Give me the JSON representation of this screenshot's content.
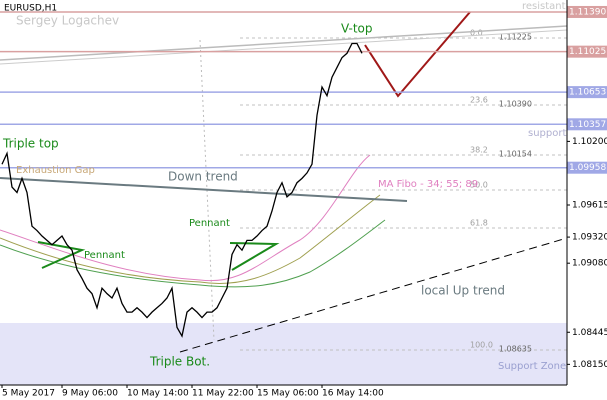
{
  "chart_data": {
    "type": "line",
    "title": "EURUSD,H1",
    "categories": [
      "5 May 2017",
      null,
      null,
      null,
      null,
      null,
      null,
      null,
      null,
      null,
      null,
      null,
      "9 May 06:00",
      null,
      null,
      null,
      null,
      null,
      null,
      null,
      null,
      null,
      null,
      null,
      null,
      "10 May 14:00",
      null,
      null,
      null,
      null,
      null,
      null,
      null,
      null,
      null,
      null,
      null,
      null,
      "11 May 22:00",
      null,
      null,
      null,
      null,
      null,
      null,
      null,
      null,
      null,
      null,
      null,
      null,
      "15 May 06:00",
      null,
      null,
      null,
      null,
      null,
      null,
      null,
      null,
      null,
      null,
      null,
      null,
      "16 May 14:00",
      null,
      null,
      null,
      null,
      null,
      null,
      null,
      null
    ],
    "series": [
      {
        "name": "EURUSD",
        "color": "#000000",
        "values": [
          1.0999,
          1.1009,
          1.0978,
          1.0973,
          1.0986,
          1.0973,
          1.0942,
          1.0938,
          1.0933,
          1.0929,
          1.0925,
          1.0929,
          1.0933,
          1.0925,
          1.092,
          1.0902,
          1.0894,
          1.0885,
          1.088,
          1.0867,
          1.0885,
          1.088,
          1.0876,
          1.0885,
          1.0871,
          1.0863,
          1.0863,
          1.0867,
          1.0863,
          1.0858,
          1.0863,
          1.0867,
          1.0871,
          1.0876,
          1.0885,
          1.0849,
          1.0841,
          1.0863,
          1.0867,
          1.0863,
          1.0858,
          1.0863,
          1.0863,
          1.0867,
          1.0876,
          1.0885,
          1.0916,
          1.0925,
          1.092,
          1.0929,
          1.0929,
          1.0933,
          1.0938,
          1.0942,
          1.0956,
          1.0973,
          1.0982,
          1.0969,
          1.0973,
          1.0982,
          1.0986,
          1.0991,
          1.0999,
          1.1044,
          1.107,
          1.1062,
          1.1079,
          1.1088,
          1.1097,
          1.1101,
          1.111,
          1.111,
          1.1101
        ]
      }
    ],
    "ylim": [
      1.0796,
      1.115
    ],
    "yticks": [
      {
        "value": 1.102,
        "label": "1.10200"
      },
      {
        "value": 1.09615,
        "label": "1.09615"
      },
      {
        "value": 1.0932,
        "label": "1.09320"
      },
      {
        "value": 1.0908,
        "label": "1.09080"
      },
      {
        "value": 1.08445,
        "label": "1.08445"
      },
      {
        "value": 1.0815,
        "label": "1.08150"
      }
    ],
    "levels": [
      {
        "value": 1.1139,
        "label": "1.11390",
        "color": "#d9a0a0"
      },
      {
        "value": 1.11025,
        "label": "1.11025",
        "color": "#d9a0a0"
      },
      {
        "value": 1.10653,
        "label": "1.10653",
        "color": "#a0a8e6"
      },
      {
        "value": 1.10357,
        "label": "1.10357",
        "color": "#a0a8e6"
      },
      {
        "value": 1.09958,
        "label": "1.09958",
        "color": "#a0a8e6"
      }
    ],
    "fibo": [
      {
        "level": "0.0",
        "price": "1.11225"
      },
      {
        "level": "23.6",
        "price": "1.10390"
      },
      {
        "level": "38.2",
        "price": "1.10154"
      },
      {
        "level": "50.0"
      },
      {
        "level": "61.8"
      },
      {
        "level": "100.0",
        "price": "1.08635"
      }
    ],
    "annotations": {
      "author": "Sergey Logachev",
      "resistant": "resistant",
      "support": "support",
      "v_top": "V-top",
      "triple_top": "Triple top",
      "exhaustion_gap": "Exhaustion  Gap",
      "down_trend": "Down trend",
      "ma_fibo": "MA Fibo - 34; 55; 89",
      "pennant_1": "Pennant",
      "pennant_2": "Pennant",
      "triple_bottom": "Triple Bot.",
      "up_trend": "local Up trend",
      "support_zone": "Support Zone"
    }
  }
}
